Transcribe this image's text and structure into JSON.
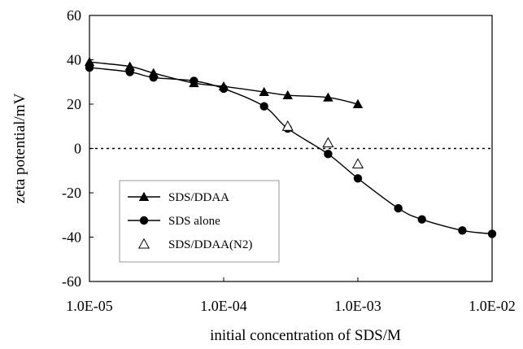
{
  "chart_data": {
    "type": "line",
    "xlabel": "initial concentration of SDS/M",
    "ylabel": "zeta potential/mV",
    "xscale": "log",
    "xlim": [
      1e-05,
      0.01
    ],
    "ylim": [
      -60,
      60
    ],
    "x_tick_labels": [
      "1.0E-05",
      "1.0E-04",
      "1.0E-03",
      "1.0E-02"
    ],
    "y_ticks": [
      60,
      40,
      20,
      0,
      -20,
      -40,
      -60
    ],
    "grid": false,
    "reference_line": {
      "y": 0,
      "style": "dotted"
    },
    "legend_position": "bottom-left",
    "series": [
      {
        "name": "SDS/DDAA",
        "marker": "filled-triangle",
        "line": true,
        "x": [
          1e-05,
          2e-05,
          3e-05,
          6e-05,
          0.0001,
          0.0002,
          0.0003,
          0.0006,
          0.001
        ],
        "y": [
          39,
          37,
          34,
          29.5,
          28,
          25.5,
          24,
          23,
          20
        ]
      },
      {
        "name": "SDS alone",
        "marker": "filled-circle",
        "line": true,
        "x": [
          1e-05,
          2e-05,
          3e-05,
          6e-05,
          0.0001,
          0.0002,
          0.0003,
          0.0006,
          0.001,
          0.002,
          0.003,
          0.006,
          0.01
        ],
        "y": [
          36.5,
          34.5,
          32,
          30.5,
          27,
          19,
          9,
          -2.5,
          -13.5,
          -27,
          -32,
          -37,
          -38.5
        ]
      },
      {
        "name": "SDS/DDAA(N2)",
        "marker": "open-triangle",
        "line": false,
        "x": [
          0.0003,
          0.0006,
          0.001
        ],
        "y": [
          10,
          2.5,
          -7
        ]
      }
    ]
  }
}
